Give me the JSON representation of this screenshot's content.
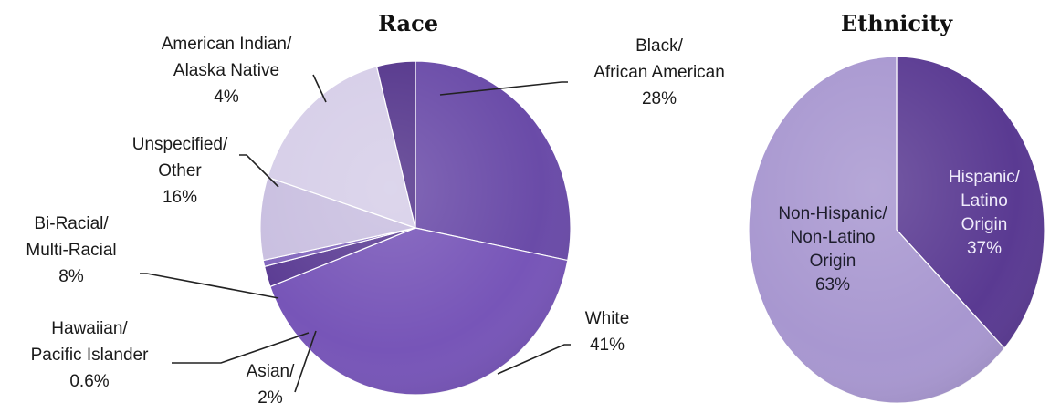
{
  "chart_data": [
    {
      "type": "pie",
      "title": "Race",
      "slices": [
        {
          "label_lines": [
            "Black/",
            "African American"
          ],
          "value": 28,
          "value_text": "28%",
          "color": "#6a4ba8"
        },
        {
          "label_lines": [
            "White"
          ],
          "value": 41,
          "value_text": "41%",
          "color": "#7755b8"
        },
        {
          "label_lines": [
            "Asian/"
          ],
          "value": 2,
          "value_text": "2%",
          "color": "#5c3d94"
        },
        {
          "label_lines": [
            "Hawaiian/",
            "Pacific Islander"
          ],
          "value": 0.6,
          "value_text": "0.6%",
          "color": "#8266bd"
        },
        {
          "label_lines": [
            "Bi-Racial/",
            "Multi-Racial"
          ],
          "value": 8,
          "value_text": "8%",
          "color": "#c9bfe0"
        },
        {
          "label_lines": [
            "Unspecified/",
            "Other"
          ],
          "value": 16,
          "value_text": "16%",
          "color": "#d6cee8"
        },
        {
          "label_lines": [
            "American Indian/",
            "Alaska Native"
          ],
          "value": 4,
          "value_text": "4%",
          "color": "#55368c"
        }
      ]
    },
    {
      "type": "pie",
      "title": "Ethnicity",
      "slices": [
        {
          "label_lines": [
            "Hispanic/",
            "Latino",
            "Origin"
          ],
          "value": 37,
          "value_text": "37%",
          "color": "#5a3a92"
        },
        {
          "label_lines": [
            "Non-Hispanic/",
            "Non-Latino",
            "Origin"
          ],
          "value": 63,
          "value_text": "63%",
          "color": "#a897d0"
        }
      ]
    }
  ]
}
